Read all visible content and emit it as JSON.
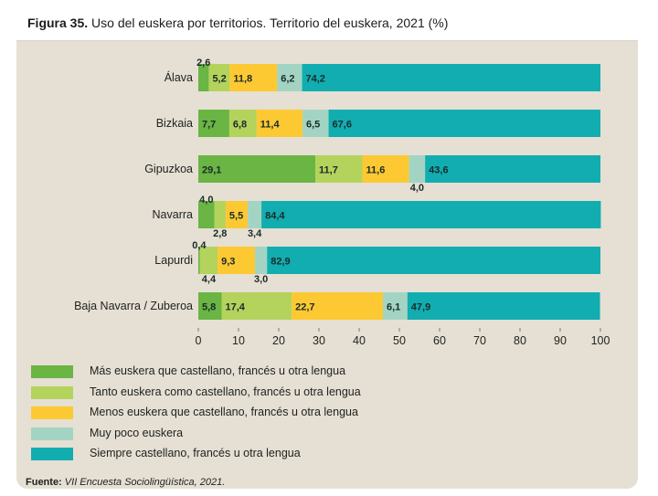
{
  "figure": {
    "label": "Figura 35.",
    "title": "Uso del euskera por territorios. Territorio del euskera, 2021 (%)",
    "source_label": "Fuente:",
    "source_text": "VII Encuesta Sociolingüística, 2021."
  },
  "colors": {
    "card": "#e5e0d3",
    "mas": "#6ab544",
    "tanto": "#b4d35c",
    "menos": "#fcc933",
    "poco": "#a3d4c3",
    "siempre": "#11adb0"
  },
  "chart_data": {
    "type": "bar",
    "orientation": "horizontal",
    "stacked": true,
    "categories": [
      "Álava",
      "Bizkaia",
      "Gipuzkoa",
      "Navarra",
      "Lapurdi",
      "Baja Navarra / Zuberoa"
    ],
    "series": [
      {
        "name": "Más euskera que castellano, francés u otra lengua",
        "color": "#6ab544",
        "values": [
          2.6,
          7.7,
          29.1,
          4.0,
          0.4,
          5.8
        ]
      },
      {
        "name": "Tanto euskera como castellano, francés u otra lengua",
        "color": "#b4d35c",
        "values": [
          5.2,
          6.8,
          11.7,
          2.8,
          4.4,
          17.4
        ]
      },
      {
        "name": "Menos euskera que castellano, francés u otra lengua",
        "color": "#fcc933",
        "values": [
          11.8,
          11.4,
          11.6,
          5.5,
          9.3,
          22.7
        ]
      },
      {
        "name": "Muy poco euskera",
        "color": "#a3d4c3",
        "values": [
          6.2,
          6.5,
          4.0,
          3.4,
          3.0,
          6.1
        ]
      },
      {
        "name": "Siempre castellano, francés u otra lengua",
        "color": "#11adb0",
        "values": [
          74.2,
          67.6,
          43.6,
          84.4,
          82.9,
          47.9
        ]
      }
    ],
    "x_ticks": [
      "0",
      "10",
      "20",
      "30",
      "40",
      "50",
      "60",
      "70",
      "80",
      "90",
      "100"
    ],
    "xlim": [
      0,
      100
    ],
    "grid": false,
    "legend_position": "bottom-left"
  }
}
